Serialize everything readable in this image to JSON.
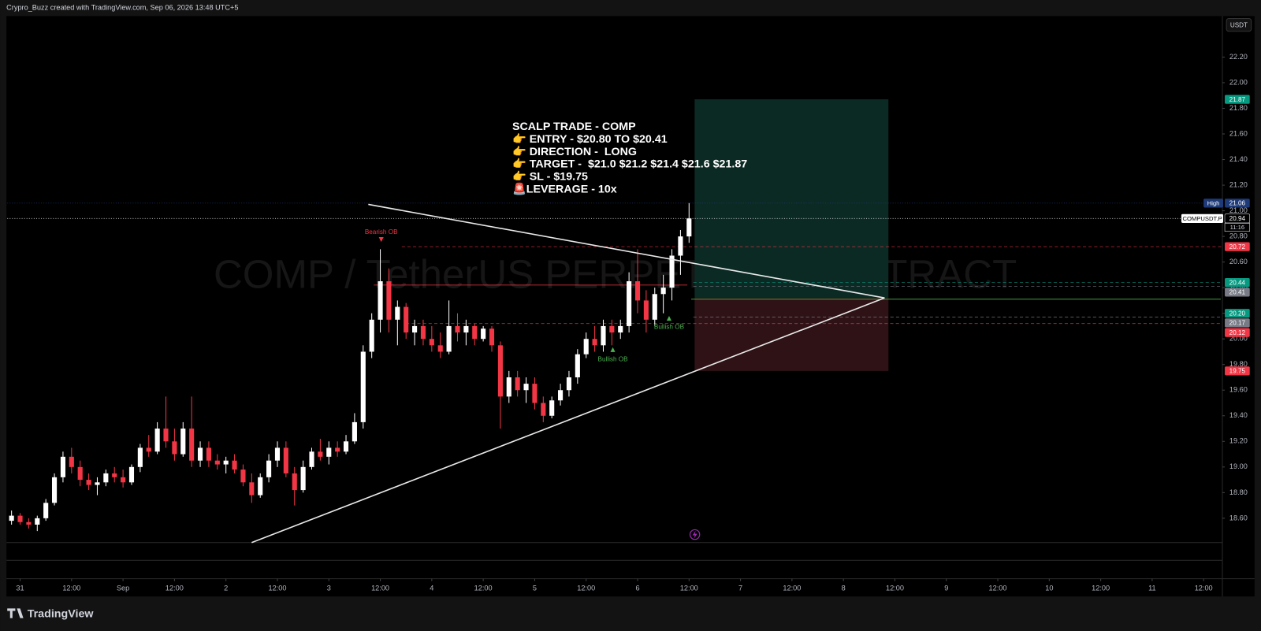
{
  "header": "Crypro_Buzz created with TradingView.com, Sep 06, 2026 13:48 UTC+5",
  "footer_logo": "TradingView",
  "chart_data": {
    "type": "candlestick",
    "watermark": "COMP / TetherUS PERPETUAL CONTRACT",
    "currency": "USDT",
    "up_color": "#ffffff",
    "down_color": "#f23645",
    "xlim": [
      -3,
      280
    ],
    "ylim": [
      18.41,
      22.52
    ],
    "xticks": [
      {
        "value": 0,
        "label": "31"
      },
      {
        "value": 12,
        "label": "12:00"
      },
      {
        "value": 24,
        "label": "Sep"
      },
      {
        "value": 36,
        "label": "12:00"
      },
      {
        "value": 48,
        "label": "2"
      },
      {
        "value": 60,
        "label": "12:00"
      },
      {
        "value": 72,
        "label": "3"
      },
      {
        "value": 84,
        "label": "12:00"
      },
      {
        "value": 96,
        "label": "4"
      },
      {
        "value": 108,
        "label": "12:00"
      },
      {
        "value": 120,
        "label": "5"
      },
      {
        "value": 132,
        "label": "12:00"
      },
      {
        "value": 144,
        "label": "6"
      },
      {
        "value": 156,
        "label": "12:00"
      },
      {
        "value": 168,
        "label": "7"
      },
      {
        "value": 180,
        "label": "12:00"
      },
      {
        "value": 192,
        "label": "8"
      },
      {
        "value": 204,
        "label": "12:00"
      },
      {
        "value": 216,
        "label": "9"
      },
      {
        "value": 228,
        "label": "12:00"
      },
      {
        "value": 240,
        "label": "10"
      },
      {
        "value": 252,
        "label": "12:00"
      },
      {
        "value": 264,
        "label": "11"
      },
      {
        "value": 276,
        "label": "12:00"
      }
    ],
    "yticks": [
      {
        "value": 18.6,
        "label": "18.60"
      },
      {
        "value": 18.8,
        "label": "18.80"
      },
      {
        "value": 19,
        "label": "19.00"
      },
      {
        "value": 19.2,
        "label": "19.20"
      },
      {
        "value": 19.4,
        "label": "19.40"
      },
      {
        "value": 19.6,
        "label": "19.60"
      },
      {
        "value": 19.8,
        "label": "19.80"
      },
      {
        "value": 20,
        "label": "20.00"
      },
      {
        "value": 20.2,
        "label": "20.20"
      },
      {
        "value": 20.4,
        "label": "20.40"
      },
      {
        "value": 20.6,
        "label": "20.60"
      },
      {
        "value": 20.8,
        "label": "20.80"
      },
      {
        "value": 21,
        "label": "21.00"
      },
      {
        "value": 21.2,
        "label": "21.20"
      },
      {
        "value": 21.4,
        "label": "21.40"
      },
      {
        "value": 21.6,
        "label": "21.60"
      },
      {
        "value": 21.8,
        "label": "21.80"
      },
      {
        "value": 22,
        "label": "22.00"
      },
      {
        "value": 22.2,
        "label": "22.20"
      }
    ],
    "candles": [
      {
        "x": -2,
        "o": 18.58,
        "h": 18.66,
        "l": 18.55,
        "c": 18.62
      },
      {
        "x": 0,
        "o": 18.62,
        "h": 18.64,
        "l": 18.55,
        "c": 18.57
      },
      {
        "x": 2,
        "o": 18.57,
        "h": 18.6,
        "l": 18.52,
        "c": 18.55
      },
      {
        "x": 4,
        "o": 18.55,
        "h": 18.62,
        "l": 18.5,
        "c": 18.6
      },
      {
        "x": 6,
        "o": 18.6,
        "h": 18.75,
        "l": 18.58,
        "c": 18.72
      },
      {
        "x": 8,
        "o": 18.72,
        "h": 18.95,
        "l": 18.7,
        "c": 18.92
      },
      {
        "x": 10,
        "o": 18.92,
        "h": 19.12,
        "l": 18.88,
        "c": 19.08
      },
      {
        "x": 12,
        "o": 19.08,
        "h": 19.15,
        "l": 18.95,
        "c": 19.0
      },
      {
        "x": 14,
        "o": 19.0,
        "h": 19.05,
        "l": 18.85,
        "c": 18.9
      },
      {
        "x": 16,
        "o": 18.9,
        "h": 18.95,
        "l": 18.82,
        "c": 18.86
      },
      {
        "x": 18,
        "o": 18.86,
        "h": 18.92,
        "l": 18.78,
        "c": 18.88
      },
      {
        "x": 20,
        "o": 18.88,
        "h": 18.98,
        "l": 18.85,
        "c": 18.95
      },
      {
        "x": 22,
        "o": 18.95,
        "h": 19.0,
        "l": 18.88,
        "c": 18.92
      },
      {
        "x": 24,
        "o": 18.92,
        "h": 18.98,
        "l": 18.84,
        "c": 18.88
      },
      {
        "x": 26,
        "o": 18.88,
        "h": 19.02,
        "l": 18.86,
        "c": 19.0
      },
      {
        "x": 28,
        "o": 19.0,
        "h": 19.18,
        "l": 18.96,
        "c": 19.15
      },
      {
        "x": 30,
        "o": 19.15,
        "h": 19.25,
        "l": 19.08,
        "c": 19.12
      },
      {
        "x": 32,
        "o": 19.12,
        "h": 19.35,
        "l": 19.1,
        "c": 19.3
      },
      {
        "x": 34,
        "o": 19.3,
        "h": 19.55,
        "l": 19.15,
        "c": 19.2
      },
      {
        "x": 36,
        "o": 19.2,
        "h": 19.3,
        "l": 19.05,
        "c": 19.1
      },
      {
        "x": 38,
        "o": 19.1,
        "h": 19.35,
        "l": 19.08,
        "c": 19.3
      },
      {
        "x": 40,
        "o": 19.3,
        "h": 19.55,
        "l": 19.0,
        "c": 19.05
      },
      {
        "x": 42,
        "o": 19.05,
        "h": 19.2,
        "l": 19.0,
        "c": 19.15
      },
      {
        "x": 44,
        "o": 19.15,
        "h": 19.2,
        "l": 19.0,
        "c": 19.05
      },
      {
        "x": 46,
        "o": 19.05,
        "h": 19.1,
        "l": 18.98,
        "c": 19.02
      },
      {
        "x": 48,
        "o": 19.02,
        "h": 19.08,
        "l": 18.95,
        "c": 19.05
      },
      {
        "x": 50,
        "o": 19.05,
        "h": 19.1,
        "l": 18.95,
        "c": 18.98
      },
      {
        "x": 52,
        "o": 18.98,
        "h": 19.02,
        "l": 18.85,
        "c": 18.88
      },
      {
        "x": 54,
        "o": 18.88,
        "h": 18.95,
        "l": 18.72,
        "c": 18.78
      },
      {
        "x": 56,
        "o": 18.78,
        "h": 18.95,
        "l": 18.76,
        "c": 18.92
      },
      {
        "x": 58,
        "o": 18.92,
        "h": 19.1,
        "l": 18.88,
        "c": 19.05
      },
      {
        "x": 60,
        "o": 19.05,
        "h": 19.2,
        "l": 19.0,
        "c": 19.15
      },
      {
        "x": 62,
        "o": 19.15,
        "h": 19.2,
        "l": 18.92,
        "c": 18.95
      },
      {
        "x": 64,
        "o": 18.95,
        "h": 19.0,
        "l": 18.7,
        "c": 18.82
      },
      {
        "x": 66,
        "o": 18.82,
        "h": 19.05,
        "l": 18.8,
        "c": 19.0
      },
      {
        "x": 68,
        "o": 19.0,
        "h": 19.15,
        "l": 18.98,
        "c": 19.12
      },
      {
        "x": 70,
        "o": 19.12,
        "h": 19.22,
        "l": 19.05,
        "c": 19.08
      },
      {
        "x": 72,
        "o": 19.08,
        "h": 19.2,
        "l": 19.02,
        "c": 19.15
      },
      {
        "x": 74,
        "o": 19.15,
        "h": 19.2,
        "l": 19.08,
        "c": 19.12
      },
      {
        "x": 76,
        "o": 19.12,
        "h": 19.25,
        "l": 19.1,
        "c": 19.2
      },
      {
        "x": 78,
        "o": 19.2,
        "h": 19.42,
        "l": 19.18,
        "c": 19.35
      },
      {
        "x": 80,
        "o": 19.35,
        "h": 19.95,
        "l": 19.3,
        "c": 19.9
      },
      {
        "x": 82,
        "o": 19.9,
        "h": 20.2,
        "l": 19.85,
        "c": 20.15
      },
      {
        "x": 84,
        "o": 20.15,
        "h": 20.7,
        "l": 20.05,
        "c": 20.45
      },
      {
        "x": 86,
        "o": 20.45,
        "h": 20.55,
        "l": 20.05,
        "c": 20.15
      },
      {
        "x": 88,
        "o": 20.15,
        "h": 20.3,
        "l": 19.95,
        "c": 20.25
      },
      {
        "x": 90,
        "o": 20.25,
        "h": 20.28,
        "l": 20.0,
        "c": 20.05
      },
      {
        "x": 92,
        "o": 20.05,
        "h": 20.15,
        "l": 19.95,
        "c": 20.1
      },
      {
        "x": 94,
        "o": 20.1,
        "h": 20.15,
        "l": 19.95,
        "c": 20.0
      },
      {
        "x": 96,
        "o": 20.0,
        "h": 20.1,
        "l": 19.9,
        "c": 19.95
      },
      {
        "x": 98,
        "o": 19.95,
        "h": 20.05,
        "l": 19.85,
        "c": 19.9
      },
      {
        "x": 100,
        "o": 19.9,
        "h": 20.3,
        "l": 19.88,
        "c": 20.1
      },
      {
        "x": 102,
        "o": 20.1,
        "h": 20.2,
        "l": 19.98,
        "c": 20.05
      },
      {
        "x": 104,
        "o": 20.05,
        "h": 20.15,
        "l": 19.95,
        "c": 20.1
      },
      {
        "x": 106,
        "o": 20.1,
        "h": 20.12,
        "l": 19.95,
        "c": 20.0
      },
      {
        "x": 108,
        "o": 20.0,
        "h": 20.1,
        "l": 19.98,
        "c": 20.08
      },
      {
        "x": 110,
        "o": 20.08,
        "h": 20.1,
        "l": 19.9,
        "c": 19.95
      },
      {
        "x": 112,
        "o": 19.95,
        "h": 19.98,
        "l": 19.3,
        "c": 19.55
      },
      {
        "x": 114,
        "o": 19.55,
        "h": 19.75,
        "l": 19.5,
        "c": 19.7
      },
      {
        "x": 116,
        "o": 19.7,
        "h": 19.75,
        "l": 19.55,
        "c": 19.6
      },
      {
        "x": 118,
        "o": 19.6,
        "h": 19.7,
        "l": 19.5,
        "c": 19.65
      },
      {
        "x": 120,
        "o": 19.65,
        "h": 19.7,
        "l": 19.45,
        "c": 19.5
      },
      {
        "x": 122,
        "o": 19.5,
        "h": 19.55,
        "l": 19.35,
        "c": 19.4
      },
      {
        "x": 124,
        "o": 19.4,
        "h": 19.55,
        "l": 19.38,
        "c": 19.52
      },
      {
        "x": 126,
        "o": 19.52,
        "h": 19.65,
        "l": 19.48,
        "c": 19.6
      },
      {
        "x": 128,
        "o": 19.6,
        "h": 19.75,
        "l": 19.55,
        "c": 19.7
      },
      {
        "x": 130,
        "o": 19.7,
        "h": 19.92,
        "l": 19.65,
        "c": 19.88
      },
      {
        "x": 132,
        "o": 19.88,
        "h": 20.05,
        "l": 19.85,
        "c": 20.0
      },
      {
        "x": 134,
        "o": 20.0,
        "h": 20.1,
        "l": 19.9,
        "c": 19.95
      },
      {
        "x": 136,
        "o": 19.95,
        "h": 20.15,
        "l": 19.9,
        "c": 20.1
      },
      {
        "x": 138,
        "o": 20.1,
        "h": 20.15,
        "l": 19.95,
        "c": 20.05
      },
      {
        "x": 140,
        "o": 20.05,
        "h": 20.15,
        "l": 20.0,
        "c": 20.1
      },
      {
        "x": 142,
        "o": 20.1,
        "h": 20.52,
        "l": 20.05,
        "c": 20.45
      },
      {
        "x": 144,
        "o": 20.45,
        "h": 20.7,
        "l": 20.2,
        "c": 20.3
      },
      {
        "x": 146,
        "o": 20.3,
        "h": 20.38,
        "l": 20.05,
        "c": 20.15
      },
      {
        "x": 148,
        "o": 20.15,
        "h": 20.4,
        "l": 20.1,
        "c": 20.35
      },
      {
        "x": 150,
        "o": 20.35,
        "h": 20.5,
        "l": 20.2,
        "c": 20.4
      },
      {
        "x": 152,
        "o": 20.4,
        "h": 20.7,
        "l": 20.3,
        "c": 20.65
      },
      {
        "x": 154,
        "o": 20.65,
        "h": 20.85,
        "l": 20.5,
        "c": 20.8
      },
      {
        "x": 156,
        "o": 20.8,
        "h": 21.06,
        "l": 20.75,
        "c": 20.94
      }
    ],
    "trendlines": [
      {
        "color": "#e8e8e8",
        "points": [
          {
            "x": 81.2,
            "y": 21.05
          },
          {
            "x": 201.6,
            "y": 20.32
          }
        ]
      },
      {
        "color": "#e8e8e8",
        "points": [
          {
            "x": 54,
            "y": 18.41
          },
          {
            "x": 201.6,
            "y": 20.32
          }
        ]
      }
    ],
    "position": {
      "x_start": 157.3,
      "x_end": 202.5,
      "target": 21.87,
      "entry": 20.32,
      "stop": 19.75,
      "profit_color": "#0c2a24",
      "loss_color": "#2e1216"
    },
    "segments": [
      {
        "y": 20.42,
        "x": [
          82.5,
          155.6
        ],
        "color": "#f23645"
      },
      {
        "y": 20.31,
        "x": [
          156.5,
          280
        ],
        "color": "#4caf50"
      }
    ],
    "price_tags": [
      {
        "value": 21.87,
        "label": "21.87",
        "color": "#089981"
      },
      {
        "value": 21.06,
        "label": "21.06",
        "title": "High",
        "color": "#1e3a78",
        "line_style": "dotted",
        "line_from": -3
      },
      {
        "value": 20.94,
        "label": "20.94",
        "title": "COMPUSDT.P",
        "countdown": "11:16",
        "color": "#ffffff",
        "line_style": "dotted",
        "line_from": -3
      },
      {
        "value": 20.72,
        "label": "20.72",
        "color": "#f23645",
        "line_style": "dashed",
        "line_from": 89
      },
      {
        "value": 20.44,
        "label": "20.44",
        "color": "#089981",
        "line_style": "dashed",
        "line_from": 157
      },
      {
        "value": 20.41,
        "label": "20.41",
        "color": "#787b86",
        "line_style": "dashed",
        "line_from": 157
      },
      {
        "value": 20.2,
        "label": "20.20",
        "color": "#089981"
      },
      {
        "value": 20.17,
        "label": "20.17",
        "color": "#787b86",
        "line_style": "dashed",
        "line_from": 157
      },
      {
        "value": 20.12,
        "label": "20.12",
        "color": "#f23645",
        "line_style": "dashed",
        "line_from": 90
      },
      {
        "value": 19.75,
        "label": "19.75",
        "color": "#f23645"
      }
    ],
    "annotation_lines": [
      "SCALP TRADE - COMP",
      "👉 ENTRY - $20.80 TO $20.41",
      "👉 DIRECTION -  LONG",
      "👉 TARGET -  $21.0 $21.2 $21.4 $21.6 $21.87",
      "👉 SL - $19.75",
      "🚨LEVERAGE - 10x"
    ],
    "zone_labels": [
      {
        "text": "Bearish OB",
        "color": "#f23645"
      },
      {
        "text": "Bullish OB",
        "color": "#4caf50"
      },
      {
        "text": "Bullish OB",
        "color": "#4caf50"
      }
    ]
  }
}
